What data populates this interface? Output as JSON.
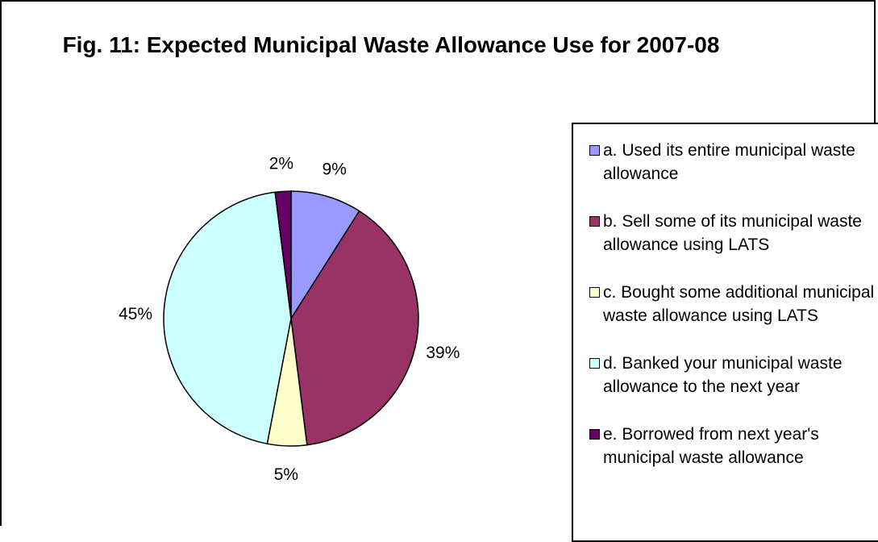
{
  "chart_data": {
    "type": "pie",
    "title": "Fig. 11: Expected Municipal Waste Allowance Use for 2007-08",
    "slices": [
      {
        "label": "a. Used its entire municipal waste allowance",
        "value": 9,
        "value_label": "9%",
        "color": "#9999ff"
      },
      {
        "label": "b. Sell some of its municipal waste allowance using LATS",
        "value": 39,
        "value_label": "39%",
        "color": "#993366"
      },
      {
        "label": "c. Bought some additional municipal waste allowance using LATS",
        "value": 5,
        "value_label": "5%",
        "color": "#ffffcc"
      },
      {
        "label": "d. Banked your municipal waste allowance to the next year",
        "value": 45,
        "value_label": "45%",
        "color": "#ccffff"
      },
      {
        "label": "e. Borrowed from next year's municipal waste allowance",
        "value": 2,
        "value_label": "2%",
        "color": "#660066"
      }
    ],
    "legend_position": "right"
  }
}
